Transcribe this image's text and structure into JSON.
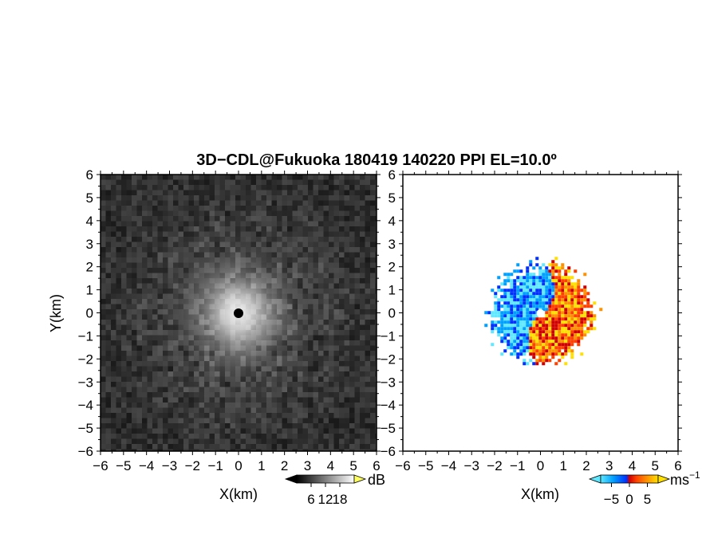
{
  "figure": {
    "title": "3D−CDL@Fukuoka 180419 140220 PPI EL=10.0º"
  },
  "chart_data": [
    {
      "type": "heatmap",
      "name": "backscatter-intensity",
      "xlabel": "X(km)",
      "ylabel": "Y(km)",
      "xlim": [
        -6,
        6
      ],
      "ylim": [
        -6,
        6
      ],
      "xticks": [
        "−6",
        "−5",
        "−4",
        "−3",
        "−2",
        "−1",
        "0",
        "1",
        "2",
        "3",
        "4",
        "5",
        "6"
      ],
      "yticks": [
        "−6",
        "−5",
        "−4",
        "−3",
        "−2",
        "−1",
        "0",
        "1",
        "2",
        "3",
        "4",
        "5",
        "6"
      ],
      "grid": false,
      "colormap": "grayscale",
      "radar_center": [
        0,
        0
      ],
      "colorbar": {
        "unit": "dB",
        "ticks": [
          6,
          12,
          18
        ],
        "range": [
          0,
          24
        ],
        "colors": [
          "#000000",
          "#ffffff"
        ]
      }
    },
    {
      "type": "heatmap",
      "name": "doppler-velocity",
      "xlabel": "X(km)",
      "ylabel": "",
      "xlim": [
        -6,
        6
      ],
      "ylim": [
        -6,
        6
      ],
      "xticks": [
        "−6",
        "−5",
        "−4",
        "−3",
        "−2",
        "−1",
        "0",
        "1",
        "2",
        "3",
        "4",
        "5",
        "6"
      ],
      "yticks": [
        "−6",
        "−5",
        "−4",
        "−3",
        "−2",
        "−1",
        "0",
        "1",
        "2",
        "3",
        "4",
        "5",
        "6"
      ],
      "grid": false,
      "colormap": "diverging cyan-blue-red-yellow",
      "data_extent_km": 3,
      "colorbar": {
        "unit": "ms",
        "unit_exp": "−1",
        "ticks": [
          "−5",
          "0",
          "5"
        ],
        "tick_values": [
          -5,
          0,
          5
        ],
        "range": [
          -8,
          8
        ],
        "colors": [
          "#5fe8ff",
          "#00a0ff",
          "#0030ff",
          "#d00000",
          "#ff4000",
          "#ff9000",
          "#ffe000"
        ]
      }
    }
  ]
}
